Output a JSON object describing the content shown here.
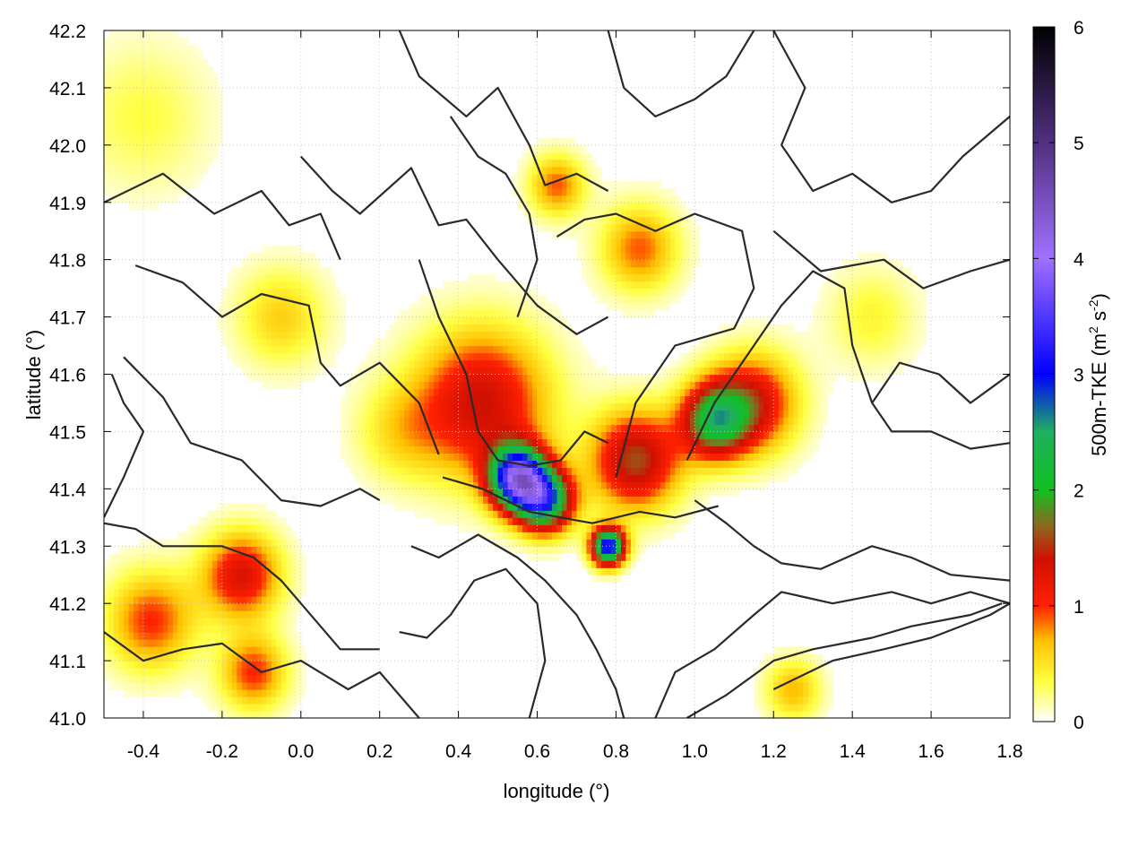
{
  "chart_data": {
    "type": "heatmap",
    "xlabel": "longitude (°)",
    "ylabel": "latitude (°)",
    "colorbar_label": "500m-TKE (m² s⁻²)",
    "colorbar_label_parts": [
      "500m-TKE (m",
      "2",
      " s",
      "-2",
      ")"
    ],
    "xlim": [
      -0.5,
      1.8
    ],
    "ylim": [
      41.0,
      42.2
    ],
    "x_ticks": [
      -0.4,
      -0.2,
      0.0,
      0.2,
      0.4,
      0.6,
      0.8,
      1.0,
      1.2,
      1.4,
      1.6,
      1.8
    ],
    "x_tick_labels": [
      "-0.4",
      "-0.2",
      "0.0",
      "0.2",
      "0.4",
      "0.6",
      "0.8",
      "1.0",
      "1.2",
      "1.4",
      "1.6",
      "1.8"
    ],
    "y_ticks": [
      41.0,
      41.1,
      41.2,
      41.3,
      41.4,
      41.5,
      41.6,
      41.7,
      41.8,
      41.9,
      42.0,
      42.1,
      42.2
    ],
    "y_tick_labels": [
      "41.0",
      "41.1",
      "41.2",
      "41.3",
      "41.4",
      "41.5",
      "41.6",
      "41.7",
      "41.8",
      "41.9",
      "42.0",
      "42.1",
      "42.2"
    ],
    "colorbar_range": [
      0,
      6
    ],
    "colorbar_ticks": [
      0,
      1,
      2,
      3,
      4,
      5,
      6
    ],
    "colorbar_tick_labels": [
      "0",
      "1",
      "2",
      "3",
      "4",
      "5",
      "6"
    ],
    "colormap": [
      {
        "v": 0.0,
        "color": "#ffffff"
      },
      {
        "v": 0.35,
        "color": "#ffff40"
      },
      {
        "v": 0.7,
        "color": "#ffc000"
      },
      {
        "v": 1.0,
        "color": "#ff2000"
      },
      {
        "v": 1.4,
        "color": "#d01000"
      },
      {
        "v": 1.7,
        "color": "#8a6a20"
      },
      {
        "v": 2.0,
        "color": "#10c020"
      },
      {
        "v": 2.5,
        "color": "#20b060"
      },
      {
        "v": 3.0,
        "color": "#0000ff"
      },
      {
        "v": 4.0,
        "color": "#a070ff"
      },
      {
        "v": 5.0,
        "color": "#503080"
      },
      {
        "v": 6.0,
        "color": "#000000"
      }
    ],
    "grid": true,
    "tke_hotspots": [
      {
        "lon": 0.46,
        "lat": 41.55,
        "value": 1.4,
        "spread": 0.12
      },
      {
        "lon": 0.55,
        "lat": 41.42,
        "value": 3.5,
        "spread": 0.05
      },
      {
        "lon": 0.62,
        "lat": 41.38,
        "value": 2.6,
        "spread": 0.05
      },
      {
        "lon": 0.78,
        "lat": 41.3,
        "value": 3.2,
        "spread": 0.03
      },
      {
        "lon": 0.85,
        "lat": 41.45,
        "value": 1.6,
        "spread": 0.08
      },
      {
        "lon": 1.05,
        "lat": 41.52,
        "value": 2.0,
        "spread": 0.06
      },
      {
        "lon": 1.15,
        "lat": 41.55,
        "value": 1.3,
        "spread": 0.08
      },
      {
        "lon": 0.86,
        "lat": 41.82,
        "value": 0.9,
        "spread": 0.07
      },
      {
        "lon": 0.65,
        "lat": 41.93,
        "value": 0.9,
        "spread": 0.05
      },
      {
        "lon": -0.15,
        "lat": 41.25,
        "value": 1.3,
        "spread": 0.07
      },
      {
        "lon": -0.38,
        "lat": 41.17,
        "value": 1.0,
        "spread": 0.08
      },
      {
        "lon": -0.12,
        "lat": 41.08,
        "value": 1.0,
        "spread": 0.06
      },
      {
        "lon": -0.05,
        "lat": 41.7,
        "value": 0.6,
        "spread": 0.08
      },
      {
        "lon": 1.25,
        "lat": 41.05,
        "value": 0.7,
        "spread": 0.05
      },
      {
        "lon": -0.4,
        "lat": 42.05,
        "value": 0.35,
        "spread": 0.12
      },
      {
        "lon": 1.45,
        "lat": 41.7,
        "value": 0.4,
        "spread": 0.08
      },
      {
        "lon": 0.25,
        "lat": 41.5,
        "value": 0.45,
        "spread": 0.08
      }
    ],
    "contours": [
      [
        [
          -0.5,
          41.9
        ],
        [
          -0.35,
          41.95
        ],
        [
          -0.22,
          41.88
        ],
        [
          -0.1,
          41.92
        ],
        [
          -0.03,
          41.86
        ],
        [
          0.05,
          41.88
        ],
        [
          0.1,
          41.8
        ]
      ],
      [
        [
          -0.42,
          41.79
        ],
        [
          -0.3,
          41.76
        ],
        [
          -0.2,
          41.7
        ],
        [
          -0.1,
          41.74
        ],
        [
          0.02,
          41.72
        ],
        [
          0.05,
          41.62
        ],
        [
          0.1,
          41.58
        ],
        [
          0.2,
          41.62
        ],
        [
          0.3,
          41.55
        ],
        [
          0.35,
          41.46
        ]
      ],
      [
        [
          -0.45,
          41.63
        ],
        [
          -0.35,
          41.56
        ],
        [
          -0.28,
          41.48
        ],
        [
          -0.15,
          41.45
        ],
        [
          -0.05,
          41.38
        ],
        [
          0.05,
          41.37
        ],
        [
          0.15,
          41.4
        ],
        [
          0.2,
          41.38
        ]
      ],
      [
        [
          -0.5,
          41.34
        ],
        [
          -0.42,
          41.33
        ],
        [
          -0.35,
          41.3
        ],
        [
          -0.2,
          41.3
        ],
        [
          -0.12,
          41.28
        ],
        [
          -0.05,
          41.24
        ],
        [
          0.0,
          41.2
        ],
        [
          0.1,
          41.12
        ],
        [
          0.2,
          41.12
        ]
      ],
      [
        [
          -0.5,
          41.15
        ],
        [
          -0.4,
          41.1
        ],
        [
          -0.3,
          41.12
        ],
        [
          -0.2,
          41.13
        ],
        [
          -0.1,
          41.08
        ],
        [
          0.0,
          41.1
        ],
        [
          0.12,
          41.05
        ],
        [
          0.2,
          41.08
        ],
        [
          0.3,
          41.0
        ]
      ],
      [
        [
          0.0,
          41.98
        ],
        [
          0.08,
          41.92
        ],
        [
          0.15,
          41.88
        ],
        [
          0.28,
          41.96
        ],
        [
          0.35,
          41.86
        ],
        [
          0.42,
          41.87
        ],
        [
          0.5,
          41.8
        ],
        [
          0.6,
          41.72
        ],
        [
          0.7,
          41.67
        ],
        [
          0.78,
          41.7
        ]
      ],
      [
        [
          0.3,
          41.8
        ],
        [
          0.35,
          41.7
        ],
        [
          0.42,
          41.6
        ],
        [
          0.45,
          41.5
        ],
        [
          0.5,
          41.45
        ],
        [
          0.58,
          41.44
        ],
        [
          0.66,
          41.45
        ],
        [
          0.72,
          41.5
        ],
        [
          0.78,
          41.48
        ]
      ],
      [
        [
          0.36,
          41.42
        ],
        [
          0.46,
          41.4
        ],
        [
          0.58,
          41.36
        ],
        [
          0.66,
          41.35
        ],
        [
          0.74,
          41.34
        ],
        [
          0.86,
          41.36
        ],
        [
          0.95,
          41.35
        ],
        [
          1.06,
          41.37
        ]
      ],
      [
        [
          0.28,
          41.3
        ],
        [
          0.35,
          41.28
        ],
        [
          0.45,
          41.32
        ],
        [
          0.55,
          41.28
        ],
        [
          0.62,
          41.24
        ],
        [
          0.7,
          41.18
        ],
        [
          0.75,
          41.12
        ],
        [
          0.8,
          41.05
        ],
        [
          0.82,
          41.0
        ]
      ],
      [
        [
          0.58,
          41.0
        ],
        [
          0.62,
          41.1
        ],
        [
          0.6,
          41.2
        ],
        [
          0.52,
          41.26
        ],
        [
          0.44,
          41.24
        ],
        [
          0.38,
          41.18
        ],
        [
          0.32,
          41.14
        ],
        [
          0.25,
          41.15
        ]
      ],
      [
        [
          0.8,
          41.42
        ],
        [
          0.85,
          41.55
        ],
        [
          0.95,
          41.65
        ],
        [
          1.1,
          41.68
        ],
        [
          1.15,
          41.75
        ],
        [
          1.12,
          41.85
        ],
        [
          1.0,
          41.88
        ],
        [
          0.9,
          41.85
        ],
        [
          0.8,
          41.88
        ],
        [
          0.72,
          41.87
        ],
        [
          0.65,
          41.84
        ]
      ],
      [
        [
          0.98,
          41.45
        ],
        [
          1.05,
          41.55
        ],
        [
          1.12,
          41.62
        ],
        [
          1.22,
          41.72
        ],
        [
          1.3,
          41.78
        ],
        [
          1.38,
          41.75
        ],
        [
          1.4,
          41.65
        ],
        [
          1.45,
          41.55
        ],
        [
          1.5,
          41.5
        ],
        [
          1.6,
          41.5
        ],
        [
          1.7,
          41.47
        ],
        [
          1.8,
          41.48
        ]
      ],
      [
        [
          1.0,
          41.38
        ],
        [
          1.08,
          41.34
        ],
        [
          1.15,
          41.3
        ],
        [
          1.22,
          41.27
        ],
        [
          1.32,
          41.26
        ],
        [
          1.45,
          41.3
        ],
        [
          1.55,
          41.28
        ],
        [
          1.65,
          41.25
        ],
        [
          1.8,
          41.24
        ]
      ],
      [
        [
          0.9,
          41.0
        ],
        [
          0.95,
          41.08
        ],
        [
          1.05,
          41.12
        ],
        [
          1.15,
          41.18
        ],
        [
          1.22,
          41.22
        ],
        [
          1.35,
          41.2
        ],
        [
          1.5,
          41.22
        ],
        [
          1.6,
          41.2
        ],
        [
          1.7,
          41.22
        ],
        [
          1.8,
          41.2
        ]
      ],
      [
        [
          0.98,
          41.0
        ],
        [
          1.08,
          41.04
        ],
        [
          1.2,
          41.1
        ],
        [
          1.3,
          41.12
        ],
        [
          1.45,
          41.14
        ],
        [
          1.55,
          41.16
        ],
        [
          1.7,
          41.18
        ],
        [
          1.78,
          41.2
        ]
      ],
      [
        [
          1.2,
          41.05
        ],
        [
          1.35,
          41.1
        ],
        [
          1.48,
          41.12
        ],
        [
          1.6,
          41.14
        ],
        [
          1.75,
          41.18
        ],
        [
          1.8,
          41.2
        ]
      ],
      [
        [
          0.25,
          42.2
        ],
        [
          0.3,
          42.12
        ],
        [
          0.42,
          42.05
        ],
        [
          0.5,
          42.1
        ],
        [
          0.58,
          42.0
        ],
        [
          0.62,
          41.93
        ],
        [
          0.7,
          41.95
        ],
        [
          0.78,
          41.92
        ]
      ],
      [
        [
          0.78,
          42.2
        ],
        [
          0.82,
          42.1
        ],
        [
          0.9,
          42.05
        ],
        [
          1.0,
          42.08
        ],
        [
          1.08,
          42.12
        ],
        [
          1.15,
          42.2
        ]
      ],
      [
        [
          1.2,
          42.2
        ],
        [
          1.28,
          42.1
        ],
        [
          1.22,
          42.0
        ],
        [
          1.3,
          41.92
        ],
        [
          1.4,
          41.95
        ],
        [
          1.5,
          41.9
        ],
        [
          1.6,
          41.92
        ],
        [
          1.68,
          41.98
        ],
        [
          1.8,
          42.05
        ]
      ],
      [
        [
          1.2,
          41.85
        ],
        [
          1.32,
          41.78
        ],
        [
          1.48,
          41.8
        ],
        [
          1.58,
          41.75
        ],
        [
          1.7,
          41.78
        ],
        [
          1.8,
          41.8
        ]
      ],
      [
        [
          -0.5,
          41.35
        ],
        [
          -0.45,
          41.42
        ],
        [
          -0.4,
          41.5
        ],
        [
          -0.45,
          41.55
        ],
        [
          -0.48,
          41.6
        ]
      ],
      [
        [
          0.55,
          41.7
        ],
        [
          0.6,
          41.8
        ],
        [
          0.58,
          41.88
        ],
        [
          0.52,
          41.95
        ],
        [
          0.45,
          41.98
        ],
        [
          0.38,
          42.05
        ]
      ],
      [
        [
          1.45,
          41.55
        ],
        [
          1.52,
          41.62
        ],
        [
          1.62,
          41.6
        ],
        [
          1.7,
          41.55
        ],
        [
          1.76,
          41.58
        ],
        [
          1.8,
          41.6
        ]
      ]
    ]
  }
}
